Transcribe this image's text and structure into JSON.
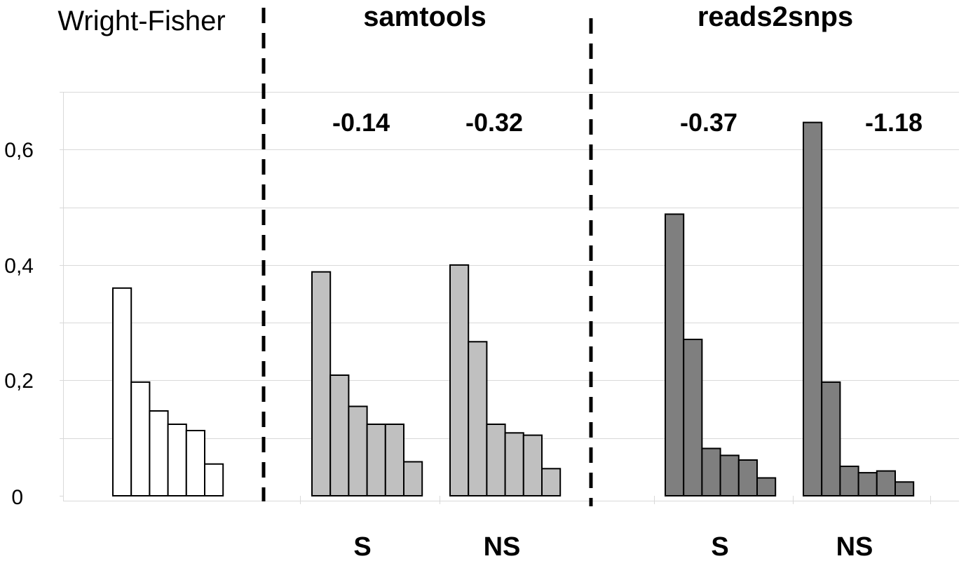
{
  "chart_data": {
    "type": "bar",
    "ylim": [
      0,
      0.7
    ],
    "y_ticks": [
      "0",
      "0,2",
      "0,4",
      "0,6"
    ],
    "y_tick_values": [
      0,
      0.2,
      0.4,
      0.6
    ],
    "grid": true,
    "colors": {
      "wright_fisher": "#ffffff",
      "samtools": "#c0c0c0",
      "reads2snps": "#7f7f7f",
      "edge": "#000000",
      "grid": "#d9d9d9"
    },
    "panels": [
      {
        "title": "Wright-Fisher",
        "title_bold": false
      },
      {
        "title": "samtools",
        "title_bold": true
      },
      {
        "title": "reads2snps",
        "title_bold": true
      }
    ],
    "series": [
      {
        "panel": "Wright-Fisher",
        "group": "",
        "annotation": "",
        "values": [
          0.36,
          0.197,
          0.147,
          0.124,
          0.113,
          0.055
        ]
      },
      {
        "panel": "samtools",
        "group": "S",
        "annotation": "-0.14",
        "values": [
          0.388,
          0.209,
          0.155,
          0.124,
          0.124,
          0.059
        ]
      },
      {
        "panel": "samtools",
        "group": "NS",
        "annotation": "-0.32",
        "values": [
          0.4,
          0.267,
          0.124,
          0.109,
          0.105,
          0.047
        ]
      },
      {
        "panel": "reads2snps",
        "group": "S",
        "annotation": "-0.37",
        "values": [
          0.488,
          0.271,
          0.082,
          0.07,
          0.062,
          0.031
        ]
      },
      {
        "panel": "reads2snps",
        "group": "NS",
        "annotation": "-1.18",
        "values": [
          0.647,
          0.197,
          0.051,
          0.04,
          0.043,
          0.024
        ]
      }
    ]
  }
}
